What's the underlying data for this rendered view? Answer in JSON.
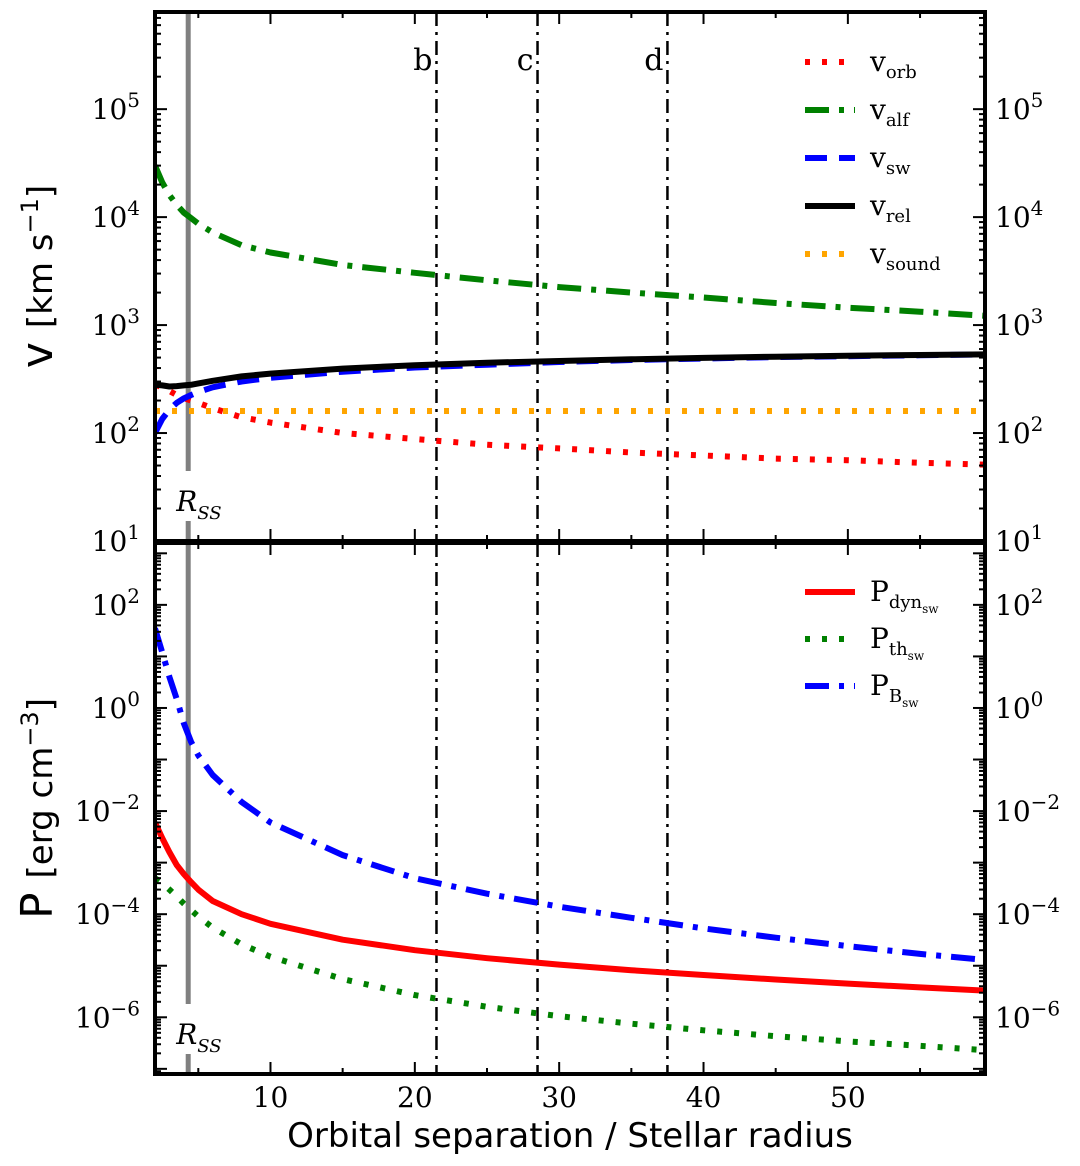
{
  "xlabel": "Orbital separation / Stellar radius",
  "chart_data": [
    {
      "type": "line",
      "panel": "top",
      "yscale": "log",
      "ylabel_main": "v",
      "ylabel_units": "[km s",
      "ylabel_exp": "−1",
      "ylabel_close": "]",
      "xlim": [
        2,
        59.5
      ],
      "ylim_exp": [
        1,
        5.9
      ],
      "xticks": [
        10,
        20,
        30,
        40,
        50
      ],
      "xtick_labels": [
        "10",
        "20",
        "30",
        "40",
        "50"
      ],
      "yticks": [
        1,
        2,
        3,
        4,
        5
      ],
      "ytick_labels": [
        "10",
        "10",
        "10",
        "10",
        "10"
      ],
      "ytick_exps": [
        "1",
        "2",
        "3",
        "4",
        "5"
      ],
      "series": [
        {
          "key": "v_orb",
          "name": "v",
          "sub": "orb",
          "color": "#ff0000",
          "style": "dotted",
          "x": [
            2,
            2.5,
            3,
            3.5,
            4,
            4.5,
            5,
            6,
            8,
            10,
            15,
            20,
            25,
            30,
            35,
            40,
            45,
            50,
            55,
            59.5
          ],
          "y": [
            280,
            265,
            245,
            225,
            210,
            200,
            190,
            170,
            140,
            125,
            100,
            88,
            78,
            72,
            66,
            62,
            58,
            56,
            53,
            51
          ]
        },
        {
          "key": "v_alf",
          "name": "v",
          "sub": "alf",
          "color": "#008000",
          "style": "dashdot",
          "x": [
            2,
            2.5,
            3,
            3.5,
            4,
            4.5,
            5,
            6,
            8,
            10,
            15,
            20,
            25,
            30,
            35,
            40,
            45,
            50,
            55,
            59.5
          ],
          "y": [
            30000,
            21000,
            16000,
            13000,
            11000,
            9800,
            8700,
            7200,
            5500,
            4700,
            3600,
            3050,
            2600,
            2250,
            2000,
            1800,
            1600,
            1450,
            1330,
            1220
          ]
        },
        {
          "key": "v_sw",
          "name": "v",
          "sub": "sw",
          "color": "#0000ff",
          "style": "dashed",
          "x": [
            2,
            2.5,
            3,
            3.5,
            4,
            4.5,
            5,
            6,
            8,
            10,
            15,
            20,
            25,
            30,
            35,
            40,
            45,
            50,
            55,
            59.5
          ],
          "y": [
            100,
            135,
            165,
            190,
            210,
            225,
            240,
            265,
            300,
            325,
            370,
            405,
            430,
            455,
            475,
            490,
            505,
            515,
            525,
            535
          ]
        },
        {
          "key": "v_rel",
          "name": "v",
          "sub": "rel",
          "color": "#000000",
          "style": "solid",
          "x": [
            2,
            2.5,
            3,
            3.5,
            4,
            4.5,
            5,
            6,
            8,
            10,
            15,
            20,
            25,
            30,
            35,
            40,
            45,
            50,
            55,
            59.5
          ],
          "y": [
            280,
            276,
            270,
            272,
            276,
            280,
            288,
            305,
            335,
            355,
            395,
            425,
            448,
            465,
            482,
            497,
            510,
            520,
            528,
            535
          ]
        },
        {
          "key": "v_sound",
          "name": "v",
          "sub": "sound",
          "color": "#ffa500",
          "style": "dotted",
          "x": [
            2,
            59.5
          ],
          "y": [
            160,
            160
          ]
        }
      ],
      "annotations": [
        {
          "label": "b",
          "x": 21.5
        },
        {
          "label": "c",
          "x": 28.5
        },
        {
          "label": "d",
          "x": 37.5
        }
      ],
      "rss": {
        "label": "R",
        "sub": "SS",
        "x": 4.3
      }
    },
    {
      "type": "line",
      "panel": "bottom",
      "yscale": "log",
      "ylabel_main": "P",
      "ylabel_units": "[erg cm",
      "ylabel_exp": "−3",
      "ylabel_close": "]",
      "xlim": [
        2,
        59.5
      ],
      "ylim_exp": [
        -7.1,
        3.2
      ],
      "xticks": [
        10,
        20,
        30,
        40,
        50
      ],
      "xtick_labels": [
        "10",
        "20",
        "30",
        "40",
        "50"
      ],
      "yticks": [
        -6,
        -4,
        -2,
        0,
        2
      ],
      "ytick_labels": [
        "10",
        "10",
        "10",
        "10",
        "10"
      ],
      "ytick_exps": [
        "−6",
        "−4",
        "−2",
        "0",
        "2"
      ],
      "series": [
        {
          "key": "P_dyn",
          "name": "P",
          "sub": "dyn",
          "subsub": "sw",
          "color": "#ff0000",
          "style": "solid",
          "x": [
            2,
            2.5,
            3,
            3.5,
            4,
            4.5,
            5,
            6,
            8,
            10,
            15,
            20,
            25,
            30,
            35,
            40,
            45,
            50,
            55,
            59.5
          ],
          "y": [
            0.006,
            0.003,
            0.0016,
            0.0009,
            0.0006,
            0.00042,
            0.0003,
            0.00018,
            0.0001,
            6.5e-05,
            3.2e-05,
            2e-05,
            1.4e-05,
            1.05e-05,
            8.2e-06,
            6.6e-06,
            5.4e-06,
            4.5e-06,
            3.8e-06,
            3.3e-06
          ]
        },
        {
          "key": "P_th",
          "name": "P",
          "sub": "th",
          "subsub": "sw",
          "color": "#008000",
          "style": "dotted",
          "x": [
            2,
            2.5,
            3,
            3.5,
            4,
            4.5,
            5,
            6,
            8,
            10,
            15,
            20,
            25,
            30,
            35,
            40,
            45,
            50,
            55,
            59.5
          ],
          "y": [
            0.0005,
            0.0004,
            0.0003,
            0.00022,
            0.00016,
            0.00012,
            9e-05,
            5.5e-05,
            2.6e-05,
            1.5e-05,
            5.5e-06,
            2.7e-06,
            1.6e-06,
            1.05e-06,
            7.5e-07,
            5.6e-07,
            4.3e-07,
            3.4e-07,
            2.8e-07,
            2.3e-07
          ]
        },
        {
          "key": "P_B",
          "name": "P",
          "sub": "B",
          "subsub": "sw",
          "color": "#0000ff",
          "style": "dashdot",
          "x": [
            2,
            2.5,
            3,
            3.5,
            4,
            4.5,
            5,
            6,
            8,
            10,
            15,
            20,
            25,
            30,
            35,
            40,
            45,
            50,
            55,
            59.5
          ],
          "y": [
            35,
            12,
            4,
            1.5,
            0.5,
            0.22,
            0.12,
            0.05,
            0.015,
            0.006,
            0.0014,
            0.0005,
            0.00025,
            0.00014,
            8.5e-05,
            5.3e-05,
            3.5e-05,
            2.4e-05,
            1.7e-05,
            1.3e-05
          ]
        }
      ],
      "annotations": [
        {
          "label": "",
          "x": 21.5
        },
        {
          "label": "",
          "x": 28.5
        },
        {
          "label": "",
          "x": 37.5
        }
      ],
      "rss": {
        "label": "R",
        "sub": "SS",
        "x": 4.3
      }
    }
  ]
}
